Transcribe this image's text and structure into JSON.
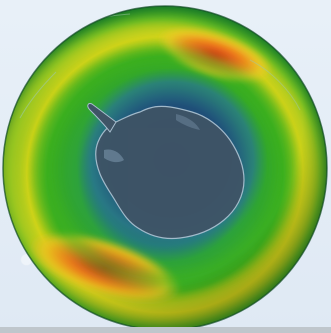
{
  "map": {
    "subject": "ozone-concentration-globe",
    "projection": "orthographic-south-polar",
    "landmass_icon": "antarctica-continent",
    "colors": {
      "background": "#e3edf6",
      "ring_green": "#2fa81c",
      "ring_yellow": "#d8d818",
      "hotspot_orange": "#f08020",
      "hotspot_red": "#d62818",
      "hole_teal": "#2a7a86",
      "hole_navy": "#1c3e66",
      "continent": "#3f5466",
      "continent_edge": "#a9bfcf"
    }
  }
}
